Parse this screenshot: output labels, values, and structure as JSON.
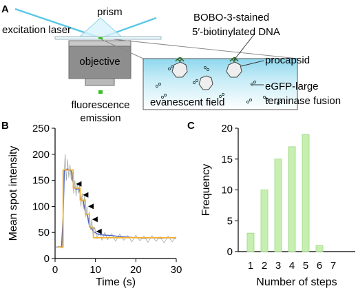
{
  "panels": {
    "a": {
      "letter": "A",
      "labels": {
        "prism": "prism",
        "excitation_laser": "excitation laser",
        "objective": "objective",
        "fluorescence": "fluorescence",
        "emission": "emission",
        "bobo_line1": "BOBO-3-stained",
        "bobo_line2": "5′-biotinylated DNA",
        "procapsid": "procapsid",
        "egfp_line1": "eGFP-large",
        "egfp_line2": "terminase fusion",
        "evanescent_field": "evanescent field"
      },
      "colors": {
        "laser": "#5bc8e6",
        "green_spot": "#35c21f",
        "field_fill": "#bfe9f5"
      }
    },
    "b": {
      "letter": "B"
    },
    "c": {
      "letter": "C"
    }
  },
  "chart_data": [
    {
      "panel": "B",
      "type": "line",
      "xlabel": "Time (s)",
      "ylabel": "Mean spot intensity",
      "xlim": [
        0,
        30
      ],
      "ylim": [
        0,
        250
      ],
      "xticks": [
        0,
        10,
        20,
        30
      ],
      "yticks": [
        0,
        50,
        100,
        150,
        200,
        250
      ],
      "series": [
        {
          "role": "step fit",
          "color": "#f5b130",
          "x": [
            0.5,
            2.0,
            2.0,
            4.5,
            4.5,
            6.2,
            6.2,
            7.5,
            7.5,
            8.5,
            8.5,
            9.5,
            9.5,
            30.0
          ],
          "y": [
            22,
            22,
            170,
            170,
            135,
            135,
            112,
            112,
            85,
            85,
            60,
            60,
            40,
            40
          ]
        },
        {
          "role": "smoothed trace",
          "color": "#4b63c8",
          "x": [
            0.3,
            1.0,
            1.6,
            2.0,
            2.3,
            3.0,
            4.0,
            4.6,
            5.2,
            6.0,
            6.4,
            7.0,
            7.5,
            8.0,
            8.5,
            9.0,
            9.5,
            10.5,
            12,
            14,
            16,
            18,
            20,
            22,
            24,
            26,
            28,
            30
          ],
          "y": [
            22,
            22,
            23,
            80,
            168,
            172,
            168,
            138,
            133,
            134,
            113,
            110,
            88,
            83,
            62,
            58,
            52,
            47,
            45,
            44,
            42,
            41,
            40,
            39,
            40,
            39,
            40,
            39
          ]
        },
        {
          "role": "raw intensity",
          "color": "#a3aaa6",
          "x": [
            0.3,
            1.0,
            1.8,
            2.1,
            2.5,
            2.8,
            3.1,
            3.4,
            3.7,
            4.0,
            4.3,
            4.6,
            4.9,
            5.2,
            5.5,
            5.8,
            6.1,
            6.4,
            6.7,
            7.0,
            7.3,
            7.6,
            7.9,
            8.2,
            8.5,
            8.8,
            9.1,
            9.4,
            9.8,
            10.4,
            11.0,
            11.6,
            12.3,
            13.0,
            14.0,
            15.0,
            16.0,
            17.0,
            18.0,
            19.0,
            20.0,
            21.0,
            22.0,
            23.0,
            24.0,
            25.0,
            26.0,
            27.0,
            28.0,
            29.0,
            30.0
          ],
          "y": [
            22,
            24,
            20,
            150,
            200,
            150,
            190,
            155,
            180,
            150,
            165,
            125,
            150,
            120,
            145,
            125,
            140,
            100,
            125,
            95,
            120,
            80,
            100,
            70,
            90,
            55,
            75,
            45,
            60,
            38,
            55,
            35,
            50,
            36,
            48,
            33,
            47,
            35,
            44,
            32,
            45,
            34,
            43,
            31,
            44,
            33,
            42,
            30,
            43,
            32,
            42
          ]
        }
      ],
      "step_markers_x": [
        9.5,
        8.5,
        7.5,
        6.2,
        4.5
      ],
      "step_markers_y": [
        52,
        75,
        100,
        122,
        143
      ]
    },
    {
      "panel": "C",
      "type": "bar",
      "xlabel": "Number of steps",
      "ylabel": "Frequency",
      "categories": [
        "1",
        "2",
        "3",
        "4",
        "5",
        "6",
        "7"
      ],
      "values": [
        3,
        10,
        15,
        17,
        19,
        1,
        0
      ],
      "ylim": [
        0,
        20
      ],
      "yticks": [
        0,
        5,
        10,
        15,
        20
      ],
      "bar_color": "#c8efb2",
      "bar_stroke": "#9ad87f"
    }
  ]
}
